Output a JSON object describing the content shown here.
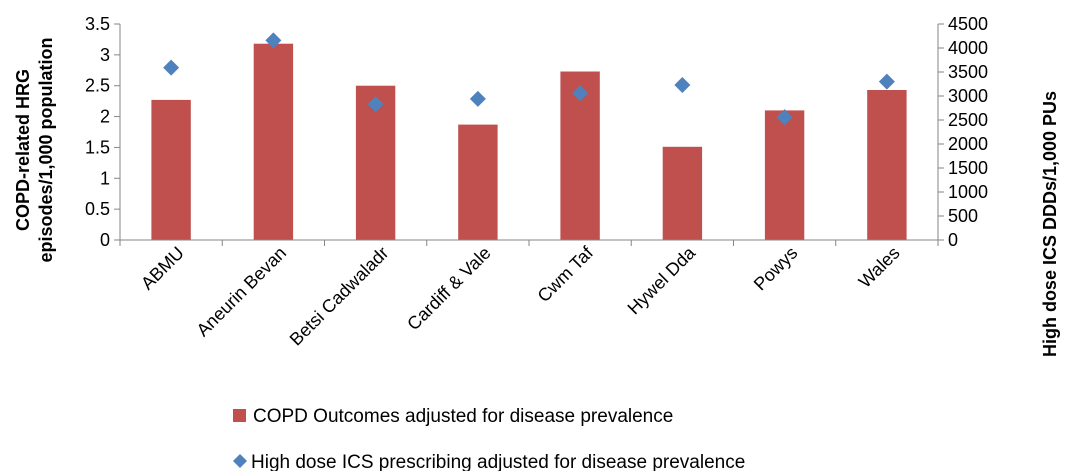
{
  "chart_data": {
    "type": "bar",
    "categories": [
      "ABMU",
      "Aneurin Bevan",
      "Betsi Cadwaladr",
      "Cardiff & Vale",
      "Cwm Taf",
      "Hywel Dda",
      "Powys",
      "Wales"
    ],
    "series": [
      {
        "name": "COPD Outcomes adjusted for disease prevalence",
        "type": "bar",
        "axis": "left",
        "color": "#c0504d",
        "values": [
          2.27,
          3.18,
          2.5,
          1.87,
          2.73,
          1.51,
          2.1,
          2.43
        ]
      },
      {
        "name": "High dose ICS prescribing adjusted for disease prevalence",
        "type": "scatter",
        "axis": "right",
        "color": "#4f81bd",
        "values": [
          3590,
          4160,
          2830,
          2940,
          3060,
          3230,
          2560,
          3300
        ]
      }
    ],
    "ylabel_lines": [
      "COPD-related HRG",
      "episodes/1,000 population"
    ],
    "y2label": "High dose ICS DDDs/1,000 PUs",
    "ylim": [
      0,
      3.5
    ],
    "y_ticks": [
      "0",
      "0.5",
      "1",
      "1.5",
      "2",
      "2.5",
      "3",
      "3.5"
    ],
    "y2lim": [
      0,
      4500
    ],
    "y2_ticks": [
      "0",
      "500",
      "1000",
      "1500",
      "2000",
      "2500",
      "3000",
      "3500",
      "4000",
      "4500"
    ],
    "grid": false,
    "legend_position": "bottom"
  }
}
